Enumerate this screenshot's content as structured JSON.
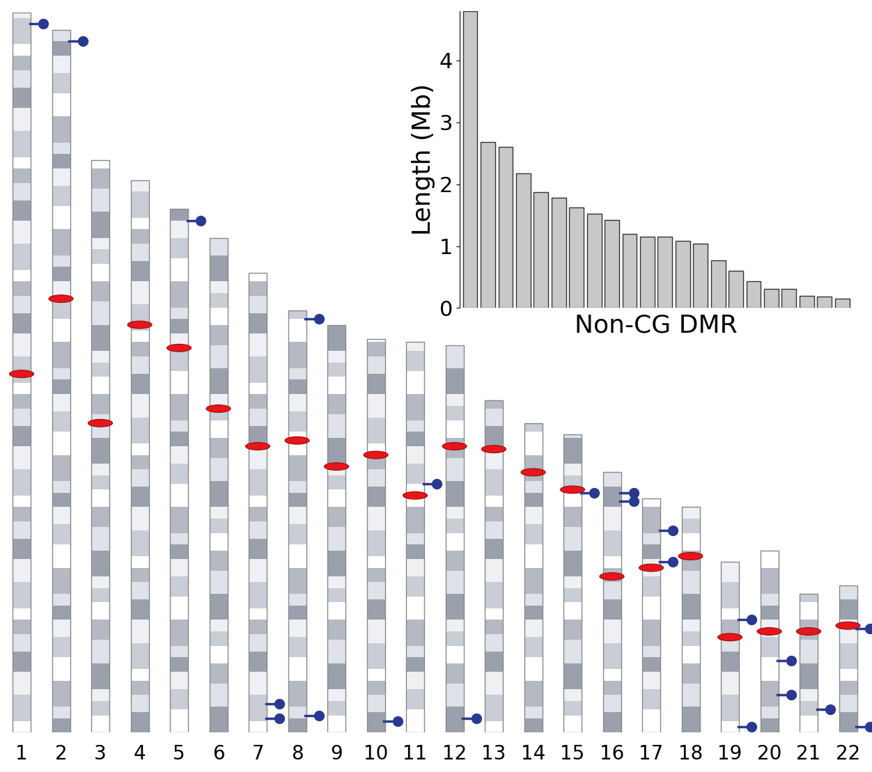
{
  "chart_data": [
    {
      "type": "ideogram",
      "categories": [
        "1",
        "2",
        "3",
        "4",
        "5",
        "6",
        "7",
        "8",
        "9",
        "10",
        "11",
        "12",
        "13",
        "14",
        "15",
        "16",
        "17",
        "18",
        "19",
        "20",
        "21",
        "22"
      ],
      "values": [
        249,
        243,
        198,
        191,
        181,
        171,
        159,
        146,
        141,
        136,
        135,
        134,
        115,
        107,
        103,
        90,
        81,
        78,
        59,
        63,
        48,
        51
      ],
      "centromeres": [
        125,
        93,
        91,
        50,
        48,
        59,
        60,
        45,
        49,
        40,
        53,
        35,
        17,
        17,
        19,
        36,
        24,
        17,
        26,
        28,
        13,
        14
      ],
      "dmrs": [
        [
          4
        ],
        [
          4
        ],
        [],
        [],
        [
          4
        ],
        [],
        [
          149,
          154
        ],
        [
          3,
          140
        ],
        [],
        [
          132
        ],
        [
          49
        ],
        [
          129
        ],
        [],
        [],
        [
          20
        ],
        [
          7,
          10
        ],
        [
          11,
          22
        ],
        [],
        [
          20,
          57
        ],
        [
          38,
          50
        ],
        [
          40
        ],
        [
          15,
          49
        ]
      ],
      "color": "#2a3990",
      "tick_labels": "x"
    },
    {
      "type": "bar",
      "categories": [
        null,
        null,
        null,
        null,
        null,
        null,
        null,
        null,
        null,
        null,
        null,
        null,
        null,
        null,
        null,
        null,
        null,
        null,
        null,
        null,
        null,
        null
      ],
      "values": [
        4.8,
        2.68,
        2.6,
        2.18,
        1.87,
        1.78,
        1.62,
        1.52,
        1.42,
        1.2,
        1.15,
        1.15,
        1.08,
        1.04,
        0.77,
        0.6,
        0.43,
        0.31,
        0.31,
        0.2,
        0.18,
        0.15
      ],
      "x_label": "Non-CG DMR",
      "y_label": "Length (Mb)",
      "ylim": [
        0,
        4.8
      ],
      "yticks": [
        0,
        1,
        2,
        3,
        4
      ],
      "color": "#c8c8c8",
      "tick_labels": "y"
    }
  ]
}
